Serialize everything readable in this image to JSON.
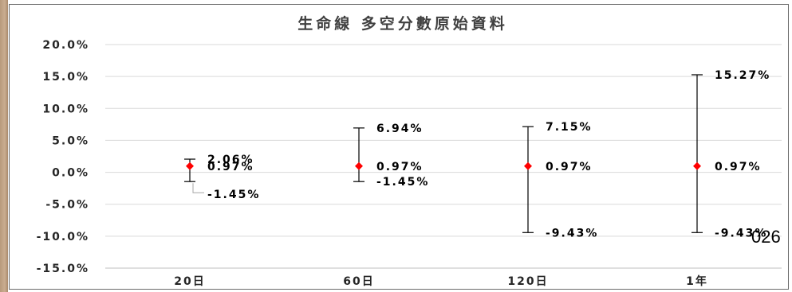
{
  "chart_data": {
    "type": "scatter",
    "title": "生命線 多空分數原始資料",
    "xlabel": "",
    "ylabel": "",
    "categories": [
      "20日",
      "60日",
      "120日",
      "1年"
    ],
    "ylim": [
      -15.0,
      20.0
    ],
    "yticks": [
      20.0,
      15.0,
      10.0,
      5.0,
      0.0,
      -5.0,
      -10.0,
      -15.0
    ],
    "ytick_labels": [
      "20.0%",
      "15.0%",
      "10.0%",
      "5.0%",
      "0.0%",
      "-5.0%",
      "-10.0%",
      "-15.0%"
    ],
    "grid": true,
    "legend": "none",
    "series": [
      {
        "values": [
          0.97,
          0.97,
          0.97,
          0.97
        ],
        "labels": [
          "0.97%",
          "0.97%",
          "0.97%",
          "0.97%"
        ]
      }
    ],
    "error_bars": {
      "high": [
        2.06,
        6.94,
        7.15,
        15.27
      ],
      "low": [
        -1.45,
        -1.45,
        -9.43,
        -9.43
      ],
      "high_labels": [
        "2.06%",
        "6.94%",
        "7.15%",
        "15.27%"
      ],
      "low_labels": [
        "-1.45%",
        "-1.45%",
        "-9.43%",
        "-9.43%"
      ]
    },
    "colors": {
      "marker": "#ff0000",
      "errorbar": "#000000",
      "grid": "#d9d9d9",
      "axis": "#bfbfbf"
    }
  },
  "overlay_text": "026"
}
